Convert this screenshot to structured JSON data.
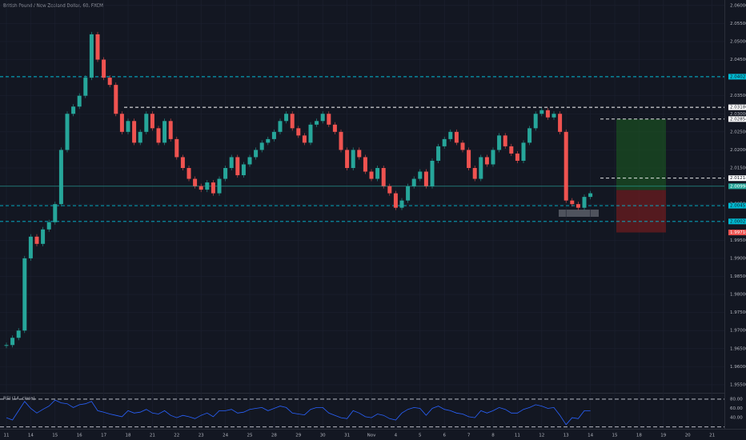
{
  "chart_data": [
    {
      "type": "candles",
      "title": "British Pound / New Zealand Dollar, 60, FXCM",
      "categories": [
        "11",
        null,
        null,
        null,
        "14",
        null,
        null,
        null,
        "15",
        null,
        null,
        null,
        "16",
        null,
        null,
        null,
        "17",
        null,
        null,
        null,
        "18",
        null,
        null,
        null,
        "21",
        null,
        null,
        null,
        "22",
        null,
        null,
        null,
        "23",
        null,
        null,
        null,
        "24",
        null,
        null,
        null,
        "25",
        null,
        null,
        null,
        "28",
        null,
        null,
        null,
        "29",
        null,
        null,
        null,
        "30",
        null,
        null,
        null,
        "31",
        null,
        null,
        null,
        "Nov",
        null,
        null,
        null,
        "4",
        null,
        null,
        null,
        "5",
        null,
        null,
        null,
        "6",
        null,
        null,
        null,
        "7",
        null,
        null,
        null,
        "8",
        null,
        null,
        null,
        "11",
        null,
        null,
        null,
        "12",
        null,
        null,
        null,
        "13",
        null,
        null,
        null,
        "14",
        null,
        null,
        null,
        "15",
        null,
        null,
        null,
        "18",
        null,
        null,
        null,
        "19",
        null,
        null,
        null,
        "20",
        null,
        null,
        null,
        "21",
        null,
        null,
        null
      ],
      "values": [
        1.966,
        1.968,
        1.97,
        1.99,
        1.996,
        1.994,
        1.998,
        2.0,
        2.005,
        2.02,
        2.03,
        2.032,
        2.035,
        2.04,
        2.052,
        2.045,
        2.04,
        2.038,
        2.03,
        2.025,
        2.028,
        2.022,
        2.025,
        2.03,
        2.026,
        2.022,
        2.028,
        2.023,
        2.018,
        2.015,
        2.012,
        2.01,
        2.009,
        2.011,
        2.008,
        2.012,
        2.015,
        2.018,
        2.013,
        2.016,
        2.018,
        2.02,
        2.022,
        2.023,
        2.025,
        2.028,
        2.03,
        2.026,
        2.024,
        2.022,
        2.027,
        2.028,
        2.03,
        2.027,
        2.025,
        2.02,
        2.015,
        2.02,
        2.018,
        2.014,
        2.012,
        2.015,
        2.01,
        2.008,
        2.004,
        2.006,
        2.01,
        2.012,
        2.014,
        2.01,
        2.017,
        2.021,
        2.023,
        2.025,
        2.022,
        2.02,
        2.015,
        2.012,
        2.018,
        2.016,
        2.02,
        2.024,
        2.021,
        2.019,
        2.017,
        2.022,
        2.026,
        2.03,
        2.031,
        2.029,
        2.03,
        2.025,
        2.006,
        2.005,
        2.004,
        2.007,
        2.008,
        null,
        null,
        null,
        null,
        null,
        null,
        null,
        null,
        null,
        null,
        null,
        null,
        null,
        null,
        null,
        null,
        null,
        null,
        null,
        null,
        null,
        null,
        null
      ],
      "up_color": "#26a69a",
      "down_color": "#ef5350",
      "ylim": [
        1.953,
        2.0615
      ],
      "yticks": [
        {
          "value": 1.955,
          "label": "1.95500"
        },
        {
          "value": 1.96,
          "label": "1.96000"
        },
        {
          "value": 1.965,
          "label": "1.96500"
        },
        {
          "value": 1.97,
          "label": "1.97000"
        },
        {
          "value": 1.975,
          "label": "1.97500"
        },
        {
          "value": 1.98,
          "label": "1.98000"
        },
        {
          "value": 1.985,
          "label": "1.98500"
        },
        {
          "value": 1.99,
          "label": "1.99000"
        },
        {
          "value": 1.995,
          "label": "1.99500"
        },
        {
          "value": 2.0,
          "label": "2.00000"
        },
        {
          "value": 2.005,
          "label": "2.00500"
        },
        {
          "value": 2.01,
          "label": "2.01000"
        },
        {
          "value": 2.015,
          "label": "2.01500"
        },
        {
          "value": 2.02,
          "label": "2.02000"
        },
        {
          "value": 2.025,
          "label": "2.02500"
        },
        {
          "value": 2.03,
          "label": "2.03000"
        },
        {
          "value": 2.035,
          "label": "2.03500"
        },
        {
          "value": 2.04,
          "label": "2.04000"
        },
        {
          "value": 2.045,
          "label": "2.04500"
        },
        {
          "value": 2.05,
          "label": "2.05000"
        },
        {
          "value": 2.055,
          "label": "2.05500"
        },
        {
          "value": 2.06,
          "label": "2.06000"
        }
      ],
      "grid": true,
      "levels": [
        {
          "value": 2.04027,
          "label": "2.04027",
          "color": "#00bcd4"
        },
        {
          "value": 2.0318,
          "label": "2.03180",
          "color": "#ffffff"
        },
        {
          "value": 2.02854,
          "label": "2.02854",
          "color": "#ffffff"
        },
        {
          "value": 2.01218,
          "label": "2.01218",
          "color": "#ffffff"
        },
        {
          "value": 2.00457,
          "label": "2.00457",
          "color": "#00bcd4"
        },
        {
          "value": 2.00021,
          "label": "2.00021",
          "color": "#00bcd4"
        }
      ],
      "last_price": {
        "value": 2.00994,
        "label": "2.00994",
        "color": "#26a69a"
      },
      "position": {
        "entry": 2.0089,
        "target": 2.02854,
        "stop": {
          "value": 1.99716,
          "label": "1.99716"
        },
        "profit_color": "#1b5e20",
        "loss_color": "#8b1d1d"
      }
    },
    {
      "type": "line",
      "title": "RSI (14, close)",
      "color": "#2962ff",
      "values": [
        40,
        35,
        55,
        75,
        60,
        50,
        58,
        65,
        78,
        72,
        70,
        62,
        68,
        70,
        75,
        55,
        52,
        48,
        45,
        42,
        55,
        50,
        52,
        58,
        50,
        48,
        55,
        45,
        40,
        45,
        42,
        38,
        45,
        50,
        42,
        55,
        55,
        58,
        50,
        52,
        58,
        60,
        62,
        55,
        60,
        65,
        62,
        50,
        48,
        46,
        58,
        62,
        62,
        50,
        45,
        40,
        38,
        55,
        50,
        42,
        40,
        48,
        45,
        38,
        35,
        50,
        58,
        62,
        60,
        45,
        60,
        65,
        58,
        55,
        50,
        48,
        42,
        40,
        55,
        50,
        55,
        62,
        58,
        50,
        50,
        58,
        62,
        68,
        65,
        60,
        62,
        45,
        25,
        40,
        38,
        55,
        55,
        null,
        null,
        null,
        null,
        null,
        null,
        null,
        null,
        null,
        null,
        null,
        null,
        null,
        null,
        null,
        null,
        null,
        null,
        null,
        null,
        null,
        null,
        null
      ],
      "ylim": [
        16,
        92
      ],
      "yticks": [
        {
          "value": 80,
          "label": "80.00"
        },
        {
          "value": 60,
          "label": "60.00"
        },
        {
          "value": 40,
          "label": "40.00"
        }
      ],
      "hlines": [
        80,
        20
      ]
    }
  ]
}
